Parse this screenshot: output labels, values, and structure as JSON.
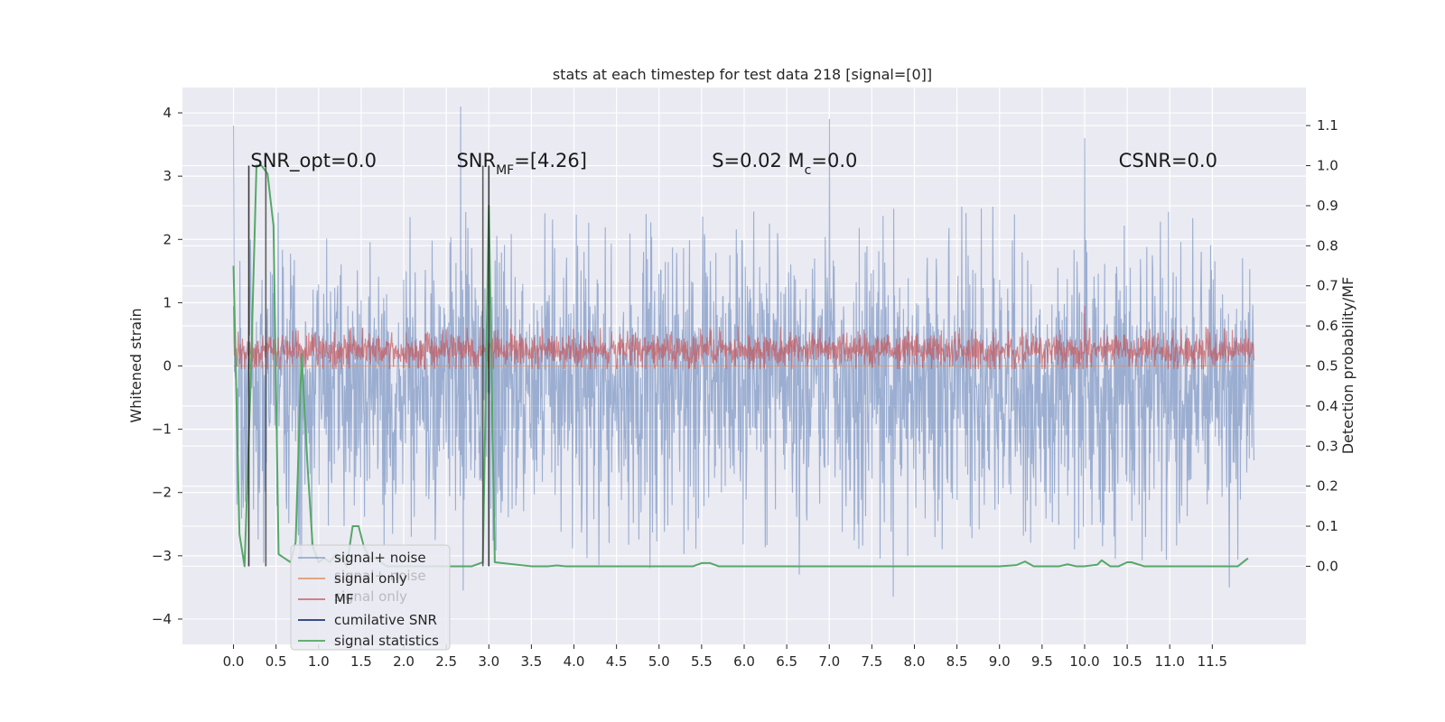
{
  "chart_data": {
    "type": "line",
    "title": "stats at each timestep for test data 218 [signal=[0]]",
    "xlabel": "",
    "ylabel": "Whitened strain",
    "ylabel_right": "Detection probability/MF",
    "xlim": [
      -0.6,
      12.6
    ],
    "ylim": [
      -4.4,
      4.4
    ],
    "ylim_right": [
      -0.195,
      1.195
    ],
    "x_ticks": [
      0.0,
      0.5,
      1.0,
      1.5,
      2.0,
      2.5,
      3.0,
      3.5,
      4.0,
      4.5,
      5.0,
      5.5,
      6.0,
      6.5,
      7.0,
      7.5,
      8.0,
      8.5,
      9.0,
      9.5,
      10.0,
      10.5,
      11.0,
      11.5
    ],
    "x_tick_labels": [
      "0.0",
      "0.5",
      "1.0",
      "1.5",
      "2.0",
      "2.5",
      "3.0",
      "3.5",
      "4.0",
      "4.5",
      "5.0",
      "5.5",
      "6.0",
      "6.5",
      "7.0",
      "7.5",
      "8.0",
      "8.5",
      "9.0",
      "9.5",
      "10.0",
      "10.5",
      "11.0",
      "11.5"
    ],
    "y_ticks": [
      -4,
      -3,
      -2,
      -1,
      0,
      1,
      2,
      3,
      4
    ],
    "y_tick_labels": [
      "−4",
      "−3",
      "−2",
      "−1",
      "0",
      "1",
      "2",
      "3",
      "4"
    ],
    "y_right_ticks": [
      0.0,
      0.1,
      0.2,
      0.3,
      0.4,
      0.5,
      0.6,
      0.7,
      0.8,
      0.9,
      1.0,
      1.1
    ],
    "y_right_tick_labels": [
      "0.0",
      "0.1",
      "0.2",
      "0.3",
      "0.4",
      "0.5",
      "0.6",
      "0.7",
      "0.8",
      "0.9",
      "1.0",
      "1.1"
    ],
    "grid": true,
    "legend_position": "lower-left",
    "series": [
      {
        "name": "signal+ noise",
        "axis": "left",
        "color": "#4c72b0",
        "kind": "noise",
        "x_range": [
          0.0,
          11.99
        ],
        "envelope": {
          "mean": -0.3,
          "spread": 1.9,
          "min": -3.65,
          "max": 4.1
        },
        "peaks": [
          [
            0.0,
            3.8
          ],
          [
            2.67,
            4.1
          ],
          [
            2.7,
            -3.55
          ],
          [
            7.0,
            3.9
          ],
          [
            7.75,
            -3.65
          ],
          [
            10.0,
            3.6
          ],
          [
            11.7,
            -3.5
          ]
        ]
      },
      {
        "name": "signal only",
        "axis": "left",
        "color": "#dd8452",
        "kind": "flat",
        "x": [
          0.0,
          11.99
        ],
        "y": [
          0.0,
          0.0
        ]
      },
      {
        "name": "MF",
        "axis": "left",
        "color": "#c44e52",
        "kind": "noise",
        "x_range": [
          0.0,
          11.99
        ],
        "envelope": {
          "mean": 0.25,
          "spread": 0.25,
          "min": -0.05,
          "max": 0.95
        },
        "peaks": [
          [
            0.0,
            0.95
          ],
          [
            10.0,
            0.95
          ]
        ]
      },
      {
        "name": "cumilative SNR",
        "axis": "left",
        "color": "#1f3d7a",
        "kind": "flat",
        "x": [],
        "y": []
      },
      {
        "name": "signal statistics",
        "axis": "right",
        "color": "#55a868",
        "kind": "line",
        "x": [
          0.0,
          0.07,
          0.13,
          0.2,
          0.27,
          0.33,
          0.4,
          0.47,
          0.53,
          0.6,
          0.67,
          0.73,
          0.8,
          0.87,
          0.93,
          1.0,
          1.07,
          1.13,
          1.2,
          1.27,
          1.33,
          1.4,
          1.47,
          1.53,
          1.6,
          1.67,
          1.73,
          1.8,
          2.0,
          2.2,
          2.4,
          2.6,
          2.8,
          2.93,
          3.0,
          3.07,
          3.5,
          3.7,
          3.8,
          3.9,
          4.5,
          5.0,
          5.4,
          5.5,
          5.6,
          5.7,
          6.0,
          6.5,
          7.0,
          7.5,
          8.0,
          8.5,
          9.0,
          9.2,
          9.3,
          9.4,
          9.7,
          9.8,
          9.9,
          10.0,
          10.15,
          10.2,
          10.3,
          10.4,
          10.5,
          10.55,
          10.7,
          11.0,
          11.5,
          11.8,
          11.92
        ],
        "y": [
          0.75,
          0.08,
          0.0,
          0.45,
          1.0,
          1.0,
          0.98,
          0.85,
          0.03,
          0.02,
          0.01,
          0.06,
          0.53,
          0.25,
          0.05,
          0.01,
          0.02,
          0.01,
          0.03,
          0.02,
          0.0,
          0.1,
          0.1,
          0.05,
          0.02,
          0.02,
          0.01,
          0.0,
          0.0,
          0.0,
          0.0,
          0.0,
          0.0,
          0.01,
          0.9,
          0.01,
          0.0,
          0.0,
          0.002,
          0.0,
          0.0,
          0.0,
          0.0,
          0.008,
          0.008,
          0.0,
          0.0,
          0.0,
          0.0,
          0.0,
          0.0,
          0.0,
          0.0,
          0.003,
          0.012,
          0.0,
          0.0,
          0.005,
          0.0,
          0.0,
          0.004,
          0.015,
          0.0,
          0.0,
          0.01,
          0.01,
          0.0,
          0.0,
          0.0,
          0.0,
          0.02
        ]
      }
    ],
    "vlines": [
      {
        "x": 0.18,
        "color": "#1a1a1a"
      },
      {
        "x": 0.38,
        "color": "#444444"
      },
      {
        "x": 2.93,
        "color": "#444444"
      },
      {
        "x": 3.0,
        "color": "#1a1a1a"
      }
    ],
    "annotations": [
      {
        "id": "snr-opt",
        "text": "SNR_opt=0.0"
      },
      {
        "id": "snr-mf",
        "text": "SNR_MF=[4.26]"
      },
      {
        "id": "s-mc",
        "text": "S=0.02   M_c=0.0"
      },
      {
        "id": "csnr",
        "text": "CSNR=0.0"
      }
    ],
    "legend": [
      "signal+ noise",
      "signal only",
      "MF",
      "cumilative SNR",
      "signal statistics"
    ],
    "legend_ghost": [
      "signal+ noise",
      "signal only"
    ]
  }
}
